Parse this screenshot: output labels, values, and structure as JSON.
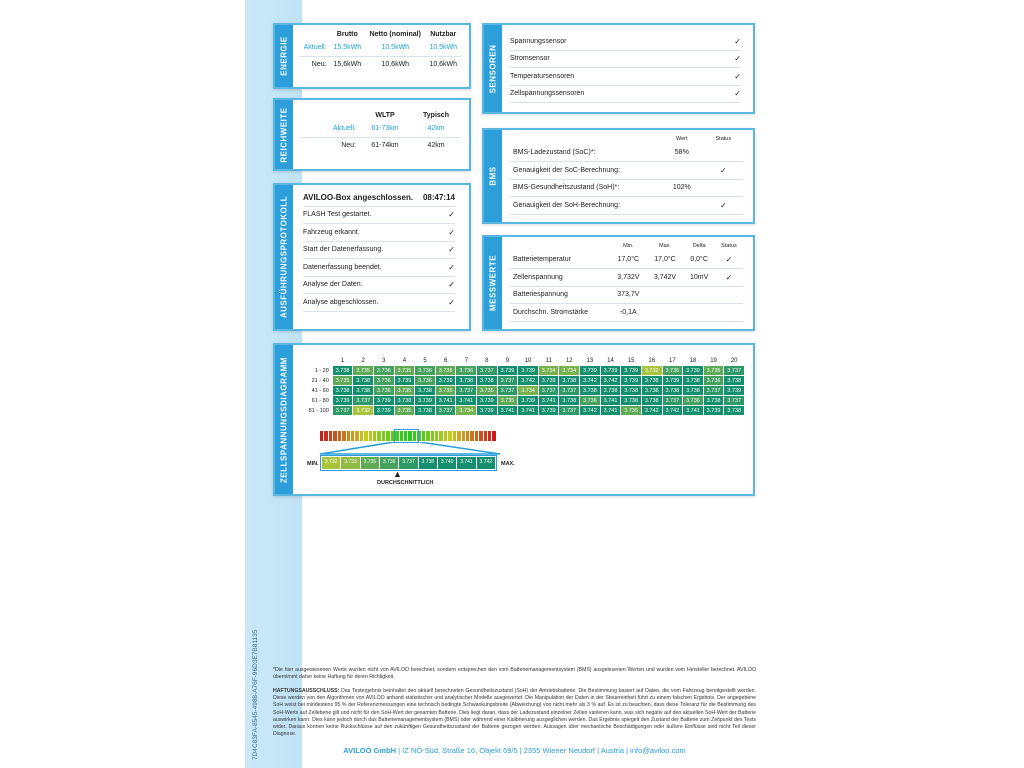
{
  "page_id": "7D4C83FA-8545-4988-A76F-96D3E7B81135",
  "energie": {
    "title": "ENERGIE",
    "headers": [
      "Brutto",
      "Netto (nominal)",
      "Nutzbar"
    ],
    "rows": [
      {
        "label": "Aktuell:",
        "values": [
          "15,5kWh",
          "10,5kWh",
          "10,5kWh"
        ]
      },
      {
        "label": "Neu:",
        "values": [
          "15,6kWh",
          "10,6kWh",
          "10,6kWh"
        ]
      }
    ]
  },
  "reichweite": {
    "title": "REICHWEITE",
    "headers": [
      "WLTP",
      "Typisch"
    ],
    "rows": [
      {
        "label": "Aktuell:",
        "values": [
          "61-73km",
          "42km"
        ]
      },
      {
        "label": "Neu:",
        "values": [
          "61-74km",
          "42km"
        ]
      }
    ]
  },
  "protokoll": {
    "title": "AUSFÜHRUNGSPROTOKOLL",
    "header": "AVILOO-Box angeschlossen.",
    "time": "08:47:14",
    "items": [
      "FLASH Test gestartet.",
      "Fahrzeug erkannt.",
      "Start der Datenerfassung.",
      "Datenerfassung beendet.",
      "Analyse der Daten.",
      "Analyse abgeschlossen."
    ]
  },
  "sensoren": {
    "title": "SENSOREN",
    "items": [
      "Spannungssensor",
      "Stromsensor",
      "Temperatursensoren",
      "Zellspannungssensoren"
    ]
  },
  "bms": {
    "title": "BMS",
    "headers": [
      "Wert",
      "Status"
    ],
    "rows": [
      {
        "label": "BMS-Ladezustand (SoC)*:",
        "value": "58%",
        "check": false
      },
      {
        "label": "Genauigkeit der SoC-Berechnung:",
        "value": "",
        "check": true
      },
      {
        "label": "BMS-Gesundheitszustand (SoH)*:",
        "value": "102%",
        "check": false
      },
      {
        "label": "Genauigkeit der SoH-Berechnung:",
        "value": "",
        "check": true
      }
    ]
  },
  "messwerte": {
    "title": "MESSWERTE",
    "headers": [
      "Min.",
      "Max.",
      "Delta",
      "Status"
    ],
    "rows": [
      {
        "label": "Batterietemperatur",
        "values": [
          "17,0°C",
          "17,0°C",
          "0,0°C"
        ],
        "check": true
      },
      {
        "label": "Zellenspannung",
        "values": [
          "3,732V",
          "3,742V",
          "10mV"
        ],
        "check": true
      },
      {
        "label": "Batteriespannung",
        "values": [
          "373,7V",
          "",
          ""
        ],
        "check": false
      },
      {
        "label": "Durchschn. Stromstärke",
        "values": [
          "-0,1A",
          "",
          ""
        ],
        "check": false
      }
    ]
  },
  "zell": {
    "title": "ZELLSPANNUNGSDIAGRAMM",
    "columns": [
      "1",
      "2",
      "3",
      "4",
      "5",
      "6",
      "7",
      "8",
      "9",
      "10",
      "11",
      "12",
      "13",
      "14",
      "15",
      "16",
      "17",
      "18",
      "19",
      "20"
    ],
    "rows": [
      {
        "label": "1 - 20",
        "values": [
          "3.738",
          "3.735",
          "3.736",
          "3.735",
          "3.736",
          "3.735",
          "3.736",
          "3.737",
          "3.739",
          "3.739",
          "3.734",
          "3.734",
          "3.739",
          "3.739",
          "3.739",
          "3.732",
          "3.736",
          "3.739",
          "3.735",
          "3.737"
        ]
      },
      {
        "label": "21 - 40",
        "values": [
          "3.735",
          "3.738",
          "3.736",
          "3.739",
          "3.736",
          "3.739",
          "3.738",
          "3.738",
          "3.737",
          "3.742",
          "3.739",
          "3.738",
          "3.742",
          "3.742",
          "3.739",
          "3.738",
          "3.739",
          "3.738",
          "3.736",
          "3.738"
        ]
      },
      {
        "label": "41 - 60",
        "values": [
          "3.738",
          "3.738",
          "3.736",
          "3.735",
          "3.738",
          "3.735",
          "3.737",
          "3.735",
          "3.737",
          "3.734",
          "3.737",
          "3.737",
          "3.738",
          "3.738",
          "3.738",
          "3.738",
          "3.738",
          "3.738",
          "3.737",
          "3.739"
        ]
      },
      {
        "label": "61 - 80",
        "values": [
          "3.739",
          "3.737",
          "3.739",
          "3.738",
          "3.739",
          "3.741",
          "3.741",
          "3.739",
          "3.735",
          "3.739",
          "3.741",
          "3.738",
          "3.736",
          "3.741",
          "3.738",
          "3.738",
          "3.737",
          "3.736",
          "3.738",
          "3.737"
        ]
      },
      {
        "label": "81 - 100",
        "values": [
          "3.737",
          "3.732",
          "3.739",
          "3.735",
          "3.738",
          "3.737",
          "3.734",
          "3.739",
          "3.741",
          "3.741",
          "3.739",
          "3.737",
          "3.742",
          "3.741",
          "3.735",
          "3.742",
          "3.742",
          "3.741",
          "3.739",
          "3.738"
        ]
      }
    ],
    "scale": [
      "3.732",
      "3.733",
      "3.735",
      "3.736",
      "3.737",
      "3.738",
      "3.740",
      "3.741",
      "3.742"
    ],
    "min_label": "MIN.",
    "max_label": "MAX.",
    "avg_label": "DURCHSCHNITTLICH"
  },
  "footer": {
    "note": "*Die hier ausgewiesenen Werte wurden nicht von AVILOO berechnet, sondern entsprechen den vom Batteriemanagementsystem (BMS) ausgelesenen Werten und wurden vom Hersteller berechnet. AVILOO übernimmt daher keine Haftung für deren Richtigkeit.",
    "disclaimer_label": "HAFTUNGSAUSSCHLUSS:",
    "disclaimer": " Das Testergebnis beinhaltet den aktuell berechneten Gesundheitszustand (SoH) der Antriebsbatterie. Die Bestimmung basiert auf Daten, die vom Fahrzeug bereitgestellt werden. Diese werden von den Algorithmen von AVILOO anhand statistischer und analytischer Modelle ausgewertet. Die Manipulation der Daten in der Steuereinheit führt zu einem falschen Ergebnis. Der angegebene SoH weist bei mindestens 95 % der Referenzmessungen eine technisch bedingte Schwankungsbreite (Abweichung) von nicht mehr als 3 % auf. Es ist zu beachten, dass diese Toleranz für die Bestimmung des SoH-Werts auf Zellebene gilt und nicht für den SoH-Wert der gesamten Batterie. Dies liegt daran, dass der Ladezustand einzelner Zellen variieren kann, was sich negativ auf den aktuellen SoH-Wert der Batterie auswirken kann. Dies kann jedoch durch das Batteriemanagementsystem (BMS) oder während einer Kalibrierung ausgeglichen werden. Das Ergebnis spiegelt den Zustand der Batterie zum Zeitpunkt des Tests wider. Daraus können keine Rückschlüsse auf den zukünftigen Gesundheitszustand der Batterie gezogen werden. Aussagen über mechanische Beschädigungen oder äußere Einflüsse sind nicht Teil dieser Diagnose.",
    "address_company": "AVILOO GmbH",
    "address": " | IZ NÖ-Süd, Straße 16, Objekt 69/5 | 2355 Wiener Neudorf | Austria | info@aviloo.com"
  },
  "colors": {
    "accent": "#2c9ed9",
    "border": "#58b7e3",
    "cell_high": "#14906f",
    "cell_low": "#a8c33c"
  }
}
